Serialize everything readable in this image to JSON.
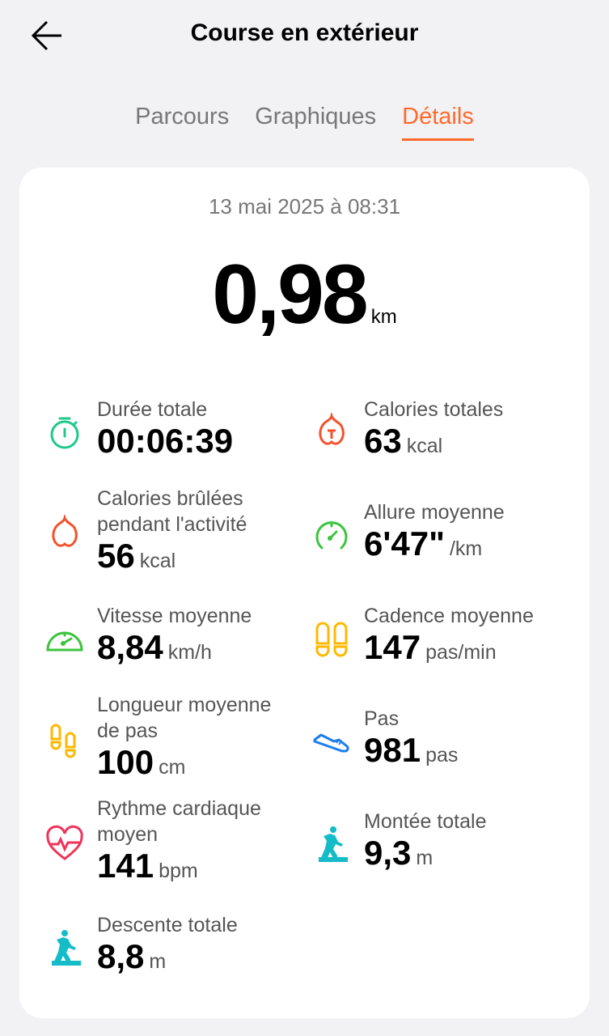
{
  "header": {
    "title": "Course en extérieur",
    "back_icon": "arrow-left-icon"
  },
  "tabs": [
    {
      "label": "Parcours",
      "active": false
    },
    {
      "label": "Graphiques",
      "active": false
    },
    {
      "label": "Détails",
      "active": true
    }
  ],
  "accent_color": "#ff6a2b",
  "summary": {
    "date": "13 mai 2025 à 08:31",
    "distance": "0,98",
    "distance_unit": "km"
  },
  "metrics": [
    {
      "label": "Durée totale",
      "value": "00:06:39",
      "unit": "",
      "icon": "stopwatch-icon",
      "color": "#1ec98a"
    },
    {
      "label": "Calories totales",
      "value": "63",
      "unit": "kcal",
      "icon": "flame-total-icon",
      "color": "#f4512c"
    },
    {
      "label": "Calories brûlées pendant l'activité",
      "value": "56",
      "unit": "kcal",
      "icon": "flame-icon",
      "color": "#f4512c"
    },
    {
      "label": "Allure moyenne",
      "value": "6'47\"",
      "unit": "/km",
      "icon": "gauge-icon",
      "color": "#3cc43c"
    },
    {
      "label": "Vitesse moyenne",
      "value": "8,84",
      "unit": "km/h",
      "icon": "speedometer-icon",
      "color": "#3cc43c"
    },
    {
      "label": "Cadence moyenne",
      "value": "147",
      "unit": "pas/min",
      "icon": "footprints-icon",
      "color": "#ffb800"
    },
    {
      "label": "Longueur moyenne de pas",
      "value": "100",
      "unit": "cm",
      "icon": "footsteps-icon",
      "color": "#ffb800"
    },
    {
      "label": "Pas",
      "value": "981",
      "unit": "pas",
      "icon": "shoe-icon",
      "color": "#1a7cf0"
    },
    {
      "label": "Rythme cardiaque moyen",
      "value": "141",
      "unit": "bpm",
      "icon": "heart-rate-icon",
      "color": "#f0335a"
    },
    {
      "label": "Montée totale",
      "value": "9,3",
      "unit": "m",
      "icon": "hiker-up-icon",
      "color": "#14bcc8"
    },
    {
      "label": "Descente totale",
      "value": "8,8",
      "unit": "m",
      "icon": "hiker-down-icon",
      "color": "#14bcc8"
    }
  ]
}
